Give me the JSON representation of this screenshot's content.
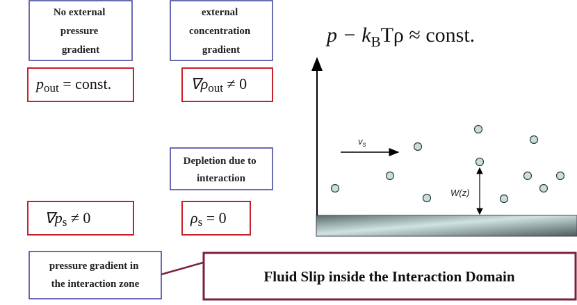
{
  "boxes": {
    "no_pressure": [
      "No external",
      "pressure",
      "gradient"
    ],
    "concentration": [
      "external",
      "concentration",
      "gradient"
    ],
    "depletion": [
      "Depletion due to",
      "interaction"
    ],
    "pressure_zone": [
      "pressure gradient in",
      "the interaction zone"
    ],
    "slip": "Fluid Slip inside the Interaction Domain"
  },
  "equations": {
    "top": {
      "main": "p − k",
      "sub": "B",
      "rest": "Tρ ≈ const."
    },
    "p_out": {
      "main": "p",
      "sub": "out",
      "rest": " = const."
    },
    "grad_rho_out": {
      "main": "∇ρ",
      "sub": "out",
      "rest": " ≠ 0"
    },
    "grad_p_s": {
      "main": "∇p",
      "sub": "s",
      "rest": " ≠ 0"
    },
    "rho_s": {
      "main": "ρ",
      "sub": "s",
      "rest": " = 0"
    }
  },
  "diagram": {
    "velocity": {
      "main": "v",
      "sub": "s"
    },
    "distance": "W(z)"
  }
}
